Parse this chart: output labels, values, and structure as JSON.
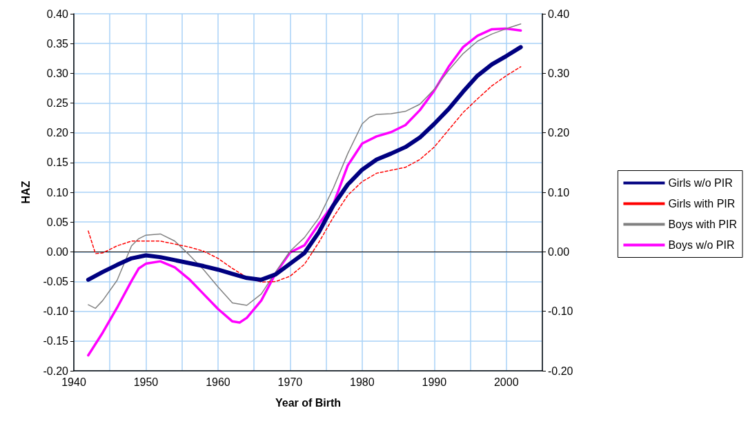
{
  "chart_data": {
    "type": "line",
    "xlabel": "Year of Birth",
    "ylabel": "HAZ",
    "xlim": [
      1940,
      2005
    ],
    "xticks": [
      1940,
      {
        "value": 1945,
        "label": null
      },
      1950,
      {
        "value": 1955,
        "label": null
      },
      1960,
      {
        "value": 1965,
        "label": null
      },
      1970,
      {
        "value": 1975,
        "label": null
      },
      1980,
      {
        "value": 1985,
        "label": null
      },
      1990,
      {
        "value": 1995,
        "label": null
      },
      2000,
      {
        "value": 2005,
        "label": null
      }
    ],
    "ylim": [
      -0.2,
      0.4
    ],
    "yticks": [
      {
        "value": -0.2,
        "label": "-0.20"
      },
      {
        "value": -0.15,
        "label": "-0.15"
      },
      {
        "value": -0.1,
        "label": "-0.10"
      },
      {
        "value": -0.05,
        "label": "-0.05"
      },
      {
        "value": 0,
        "label": "0.00"
      },
      {
        "value": 0.05,
        "label": "0.05"
      },
      {
        "value": 0.1,
        "label": "0.10"
      },
      {
        "value": 0.15,
        "label": "0.15"
      },
      {
        "value": 0.2,
        "label": "0.20"
      },
      {
        "value": 0.25,
        "label": "0.25"
      },
      {
        "value": 0.3,
        "label": "0.30"
      },
      {
        "value": 0.35,
        "label": "0.35"
      },
      {
        "value": 0.4,
        "label": "0.40"
      }
    ],
    "y2lim": [
      -0.2,
      0.4
    ],
    "y2ticks": [
      {
        "value": -0.2,
        "label": "-0.20"
      },
      {
        "value": -0.1,
        "label": "-0.10"
      },
      {
        "value": 0,
        "label": "0.00"
      },
      {
        "value": 0.1,
        "label": "0.10"
      },
      {
        "value": 0.2,
        "label": "0.20"
      },
      {
        "value": 0.3,
        "label": "0.30"
      },
      {
        "value": 0.4,
        "label": "0.40"
      }
    ],
    "grid": true,
    "legend": "right",
    "marker": "none",
    "ref_lines": [
      {
        "axis": "y",
        "value": 0,
        "color": "#000000"
      }
    ],
    "series": [
      {
        "name": "Girls w/o PIR",
        "color": "#000080",
        "line_style": "solid",
        "x": [
          1942,
          1944,
          1946,
          1948,
          1950,
          1952,
          1954,
          1956,
          1958,
          1960,
          1962,
          1964,
          1966,
          1968,
          1970,
          1972,
          1974,
          1976,
          1978,
          1980,
          1982,
          1984,
          1986,
          1988,
          1990,
          1992,
          1994,
          1996,
          1998,
          2000,
          2002
        ],
        "values": [
          -0.047,
          -0.034,
          -0.022,
          -0.011,
          -0.006,
          -0.009,
          -0.014,
          -0.019,
          -0.024,
          -0.03,
          -0.037,
          -0.044,
          -0.047,
          -0.038,
          -0.02,
          -0.002,
          0.033,
          0.078,
          0.113,
          0.138,
          0.155,
          0.165,
          0.176,
          0.192,
          0.215,
          0.24,
          0.269,
          0.296,
          0.315,
          0.329,
          0.344
        ]
      },
      {
        "name": "Girls with PIR",
        "color": "#ff0000",
        "line_style": "dashed",
        "x": [
          1942,
          1943,
          1944,
          1946,
          1948,
          1950,
          1952,
          1954,
          1956,
          1958,
          1960,
          1962,
          1964,
          1966,
          1968,
          1970,
          1972,
          1974,
          1976,
          1978,
          1980,
          1982,
          1984,
          1986,
          1988,
          1990,
          1992,
          1994,
          1996,
          1998,
          2000,
          2002
        ],
        "values": [
          0.035,
          -0.003,
          -0.002,
          0.01,
          0.018,
          0.018,
          0.018,
          0.013,
          0.008,
          0.001,
          -0.011,
          -0.028,
          -0.043,
          -0.051,
          -0.05,
          -0.041,
          -0.021,
          0.016,
          0.058,
          0.095,
          0.118,
          0.132,
          0.137,
          0.142,
          0.155,
          0.176,
          0.205,
          0.234,
          0.257,
          0.279,
          0.296,
          0.311
        ]
      },
      {
        "name": "Boys with PIR",
        "color": "#808080",
        "line_style": "solid",
        "x": [
          1942,
          1943,
          1944,
          1946,
          1948,
          1949,
          1950,
          1952,
          1954,
          1956,
          1958,
          1960,
          1962,
          1964,
          1966,
          1968,
          1970,
          1972,
          1974,
          1976,
          1978,
          1980,
          1981,
          1982,
          1984,
          1986,
          1988,
          1990,
          1992,
          1994,
          1996,
          1998,
          2000,
          2002
        ],
        "values": [
          -0.089,
          -0.095,
          -0.082,
          -0.048,
          0.01,
          0.022,
          0.028,
          0.03,
          0.018,
          -0.005,
          -0.03,
          -0.059,
          -0.086,
          -0.09,
          -0.071,
          -0.034,
          0.001,
          0.024,
          0.057,
          0.107,
          0.165,
          0.215,
          0.226,
          0.231,
          0.232,
          0.236,
          0.248,
          0.273,
          0.305,
          0.333,
          0.354,
          0.366,
          0.375,
          0.383
        ]
      },
      {
        "name": "Boys w/o PIR",
        "color": "#ff00ff",
        "line_style": "solid",
        "x": [
          1942,
          1944,
          1946,
          1948,
          1949,
          1950,
          1952,
          1954,
          1956,
          1958,
          1960,
          1962,
          1963,
          1964,
          1966,
          1968,
          1970,
          1972,
          1974,
          1976,
          1978,
          1980,
          1982,
          1984,
          1986,
          1988,
          1990,
          1992,
          1994,
          1996,
          1998,
          2000,
          2002
        ],
        "values": [
          -0.174,
          -0.136,
          -0.094,
          -0.049,
          -0.028,
          -0.02,
          -0.016,
          -0.026,
          -0.046,
          -0.071,
          -0.096,
          -0.117,
          -0.119,
          -0.111,
          -0.082,
          -0.036,
          -0.001,
          0.011,
          0.047,
          0.08,
          0.145,
          0.182,
          0.194,
          0.201,
          0.213,
          0.238,
          0.271,
          0.311,
          0.344,
          0.363,
          0.374,
          0.375,
          0.372
        ]
      }
    ]
  }
}
